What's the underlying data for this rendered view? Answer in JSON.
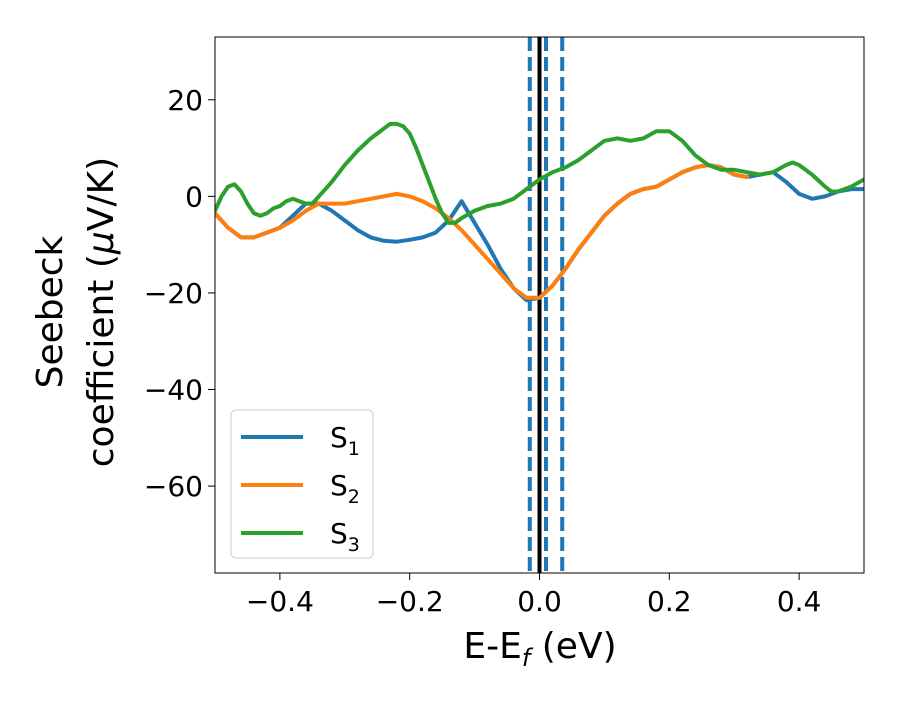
{
  "chart_data": {
    "type": "line",
    "title": "",
    "xlabel": {
      "main": "E-E",
      "sub": "f",
      "suffix": " (eV)"
    },
    "ylabel": {
      "line1": "Seebeck",
      "line2_prefix": "coefficient  (",
      "mu": "μ",
      "line2_suffix": "V/K)"
    },
    "xlim": [
      -0.5,
      0.5
    ],
    "ylim": [
      -78,
      33
    ],
    "xticks": [
      -0.4,
      -0.2,
      0.0,
      0.2,
      0.4
    ],
    "xtick_labels": [
      "−0.4",
      "−0.2",
      "0.0",
      "0.2",
      "0.4"
    ],
    "yticks": [
      20,
      0,
      -20,
      -40,
      -60
    ],
    "ytick_labels": [
      "20",
      "0",
      "−20",
      "−40",
      "−60"
    ],
    "grid": false,
    "legend": {
      "position": "lower-left"
    },
    "vlines": [
      {
        "x": 0.0,
        "style": "solid",
        "color": "#000000"
      },
      {
        "x": -0.015,
        "style": "dashed",
        "color": "#1f77b4"
      },
      {
        "x": 0.01,
        "style": "dashed",
        "color": "#1f77b4"
      },
      {
        "x": 0.035,
        "style": "dashed",
        "color": "#1f77b4"
      }
    ],
    "series": [
      {
        "name": "S",
        "sub": "1",
        "color": "#1f77b4",
        "points": [
          [
            -0.5,
            -3.5
          ],
          [
            -0.48,
            -6.5
          ],
          [
            -0.46,
            -8.5
          ],
          [
            -0.44,
            -8.5
          ],
          [
            -0.42,
            -7.5
          ],
          [
            -0.4,
            -6.5
          ],
          [
            -0.38,
            -4
          ],
          [
            -0.36,
            -1.5
          ],
          [
            -0.34,
            -1.5
          ],
          [
            -0.32,
            -3
          ],
          [
            -0.3,
            -5
          ],
          [
            -0.28,
            -7
          ],
          [
            -0.26,
            -8.5
          ],
          [
            -0.24,
            -9.2
          ],
          [
            -0.22,
            -9.4
          ],
          [
            -0.2,
            -9
          ],
          [
            -0.18,
            -8.5
          ],
          [
            -0.16,
            -7.5
          ],
          [
            -0.14,
            -5
          ],
          [
            -0.12,
            -1
          ],
          [
            -0.1,
            -5.5
          ],
          [
            -0.08,
            -10
          ],
          [
            -0.06,
            -15
          ],
          [
            -0.04,
            -19
          ],
          [
            -0.02,
            -21.5
          ],
          [
            0.0,
            -21
          ],
          [
            0.02,
            -18.5
          ],
          [
            0.04,
            -15
          ],
          [
            0.06,
            -11
          ],
          [
            0.08,
            -7.5
          ],
          [
            0.1,
            -4
          ],
          [
            0.12,
            -1.5
          ],
          [
            0.14,
            0.5
          ],
          [
            0.16,
            1.5
          ],
          [
            0.18,
            2
          ],
          [
            0.2,
            3.5
          ],
          [
            0.22,
            5
          ],
          [
            0.24,
            6
          ],
          [
            0.26,
            6.5
          ],
          [
            0.28,
            6
          ],
          [
            0.3,
            4.5
          ],
          [
            0.32,
            4
          ],
          [
            0.34,
            4.5
          ],
          [
            0.36,
            5
          ],
          [
            0.38,
            3
          ],
          [
            0.4,
            0.5
          ],
          [
            0.42,
            -0.5
          ],
          [
            0.44,
            0
          ],
          [
            0.46,
            1
          ],
          [
            0.48,
            1.5
          ],
          [
            0.5,
            1.5
          ]
        ]
      },
      {
        "name": "S",
        "sub": "2",
        "color": "#ff7f0e",
        "points": [
          [
            -0.5,
            -3.5
          ],
          [
            -0.48,
            -6.5
          ],
          [
            -0.46,
            -8.5
          ],
          [
            -0.44,
            -8.5
          ],
          [
            -0.42,
            -7.5
          ],
          [
            -0.4,
            -6.5
          ],
          [
            -0.38,
            -5
          ],
          [
            -0.36,
            -3
          ],
          [
            -0.34,
            -1.5
          ],
          [
            -0.32,
            -1.5
          ],
          [
            -0.3,
            -1.5
          ],
          [
            -0.28,
            -1
          ],
          [
            -0.26,
            -0.5
          ],
          [
            -0.24,
            0
          ],
          [
            -0.22,
            0.5
          ],
          [
            -0.2,
            0
          ],
          [
            -0.18,
            -1
          ],
          [
            -0.16,
            -2.5
          ],
          [
            -0.14,
            -4.5
          ],
          [
            -0.12,
            -7
          ],
          [
            -0.1,
            -10
          ],
          [
            -0.08,
            -13
          ],
          [
            -0.06,
            -16
          ],
          [
            -0.04,
            -19
          ],
          [
            -0.02,
            -21
          ],
          [
            0.0,
            -21
          ],
          [
            0.02,
            -18.5
          ],
          [
            0.04,
            -15
          ],
          [
            0.06,
            -11
          ],
          [
            0.08,
            -7.5
          ],
          [
            0.1,
            -4
          ],
          [
            0.12,
            -1.5
          ],
          [
            0.14,
            0.5
          ],
          [
            0.16,
            1.5
          ],
          [
            0.18,
            2
          ],
          [
            0.2,
            3.5
          ],
          [
            0.22,
            5
          ],
          [
            0.24,
            6
          ],
          [
            0.26,
            6.5
          ],
          [
            0.28,
            6
          ],
          [
            0.3,
            4.5
          ],
          [
            0.32,
            4
          ]
        ]
      },
      {
        "name": "S",
        "sub": "3",
        "color": "#2ca02c",
        "points": [
          [
            -0.5,
            -3
          ],
          [
            -0.49,
            0
          ],
          [
            -0.48,
            2
          ],
          [
            -0.47,
            2.5
          ],
          [
            -0.46,
            1
          ],
          [
            -0.45,
            -1.5
          ],
          [
            -0.44,
            -3.5
          ],
          [
            -0.43,
            -4
          ],
          [
            -0.42,
            -3.5
          ],
          [
            -0.41,
            -2.5
          ],
          [
            -0.4,
            -2
          ],
          [
            -0.39,
            -1
          ],
          [
            -0.38,
            -0.5
          ],
          [
            -0.37,
            -1
          ],
          [
            -0.36,
            -1.5
          ],
          [
            -0.35,
            -1.5
          ],
          [
            -0.34,
            0
          ],
          [
            -0.32,
            3
          ],
          [
            -0.3,
            6.5
          ],
          [
            -0.28,
            9.5
          ],
          [
            -0.26,
            12
          ],
          [
            -0.24,
            14
          ],
          [
            -0.23,
            15
          ],
          [
            -0.22,
            15
          ],
          [
            -0.21,
            14.5
          ],
          [
            -0.2,
            13
          ],
          [
            -0.19,
            10
          ],
          [
            -0.18,
            6.5
          ],
          [
            -0.17,
            3
          ],
          [
            -0.16,
            -0.5
          ],
          [
            -0.15,
            -3.5
          ],
          [
            -0.14,
            -5.5
          ],
          [
            -0.13,
            -5.5
          ],
          [
            -0.12,
            -4.5
          ],
          [
            -0.1,
            -3
          ],
          [
            -0.08,
            -2
          ],
          [
            -0.06,
            -1.5
          ],
          [
            -0.04,
            -0.5
          ],
          [
            -0.02,
            1.5
          ],
          [
            0.0,
            3.5
          ],
          [
            0.02,
            5
          ],
          [
            0.04,
            6
          ],
          [
            0.06,
            7.5
          ],
          [
            0.08,
            9.5
          ],
          [
            0.1,
            11.5
          ],
          [
            0.12,
            12
          ],
          [
            0.14,
            11.5
          ],
          [
            0.16,
            12
          ],
          [
            0.18,
            13.5
          ],
          [
            0.2,
            13.5
          ],
          [
            0.22,
            11.5
          ],
          [
            0.24,
            8.5
          ],
          [
            0.26,
            6.5
          ],
          [
            0.28,
            5.5
          ],
          [
            0.3,
            5.5
          ],
          [
            0.32,
            5
          ],
          [
            0.34,
            4.5
          ],
          [
            0.36,
            5
          ],
          [
            0.38,
            6.5
          ],
          [
            0.39,
            7
          ],
          [
            0.4,
            6.5
          ],
          [
            0.42,
            4.5
          ],
          [
            0.44,
            2
          ],
          [
            0.45,
            1
          ],
          [
            0.46,
            1
          ],
          [
            0.48,
            2
          ],
          [
            0.5,
            3.5
          ]
        ]
      }
    ]
  }
}
